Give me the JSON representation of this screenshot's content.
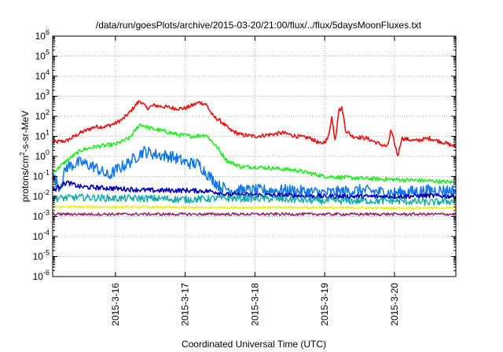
{
  "chart_data": {
    "type": "line",
    "title": "/data/run/goesPlots/archive/2015-03-20/21:00/flux/../flux/5daysMoonFluxes.txt",
    "xlabel": "Coordinated Universal Time (UTC)",
    "ylabel": {
      "base": "protons/cm",
      "sup": "2",
      "rest": "-s-sr-MeV"
    },
    "yscale": "log",
    "ylim_exp": [
      -6,
      6
    ],
    "y_tick_labels": [
      {
        "base": "10",
        "exp": "-6"
      },
      {
        "base": "10",
        "exp": "-5"
      },
      {
        "base": "10",
        "exp": "-4"
      },
      {
        "base": "10",
        "exp": "-3"
      },
      {
        "base": "10",
        "exp": "-2"
      },
      {
        "base": "10",
        "exp": "-1"
      },
      {
        "base": "10",
        "exp": "0"
      },
      {
        "base": "10",
        "exp": "1"
      },
      {
        "base": "10",
        "exp": "2"
      },
      {
        "base": "10",
        "exp": "3"
      },
      {
        "base": "10",
        "exp": "4"
      },
      {
        "base": "10",
        "exp": "5"
      },
      {
        "base": "10",
        "exp": "6"
      }
    ],
    "xlim_days": [
      15.1,
      20.88
    ],
    "x_ticks": [
      {
        "day": 16,
        "label": "2015-3-16"
      },
      {
        "day": 17,
        "label": "2015-3-17"
      },
      {
        "day": 18,
        "label": "2015-3-18"
      },
      {
        "day": 19,
        "label": "2015-3-19"
      },
      {
        "day": 20,
        "label": "2015-3-20"
      }
    ],
    "grid": true,
    "series": [
      {
        "color": "#ee1111",
        "width": 1.6,
        "x": [
          15.1,
          15.3,
          15.5,
          15.7,
          15.85,
          16.0,
          16.1,
          16.2,
          16.3,
          16.35,
          16.45,
          16.55,
          16.7,
          16.85,
          17.0,
          17.1,
          17.2,
          17.3,
          17.4,
          17.5,
          17.65,
          17.8,
          18.0,
          18.2,
          18.4,
          18.6,
          18.8,
          18.95,
          19.05,
          19.1,
          19.15,
          19.2,
          19.25,
          19.3,
          19.4,
          19.6,
          19.8,
          19.9,
          19.95,
          20.05,
          20.1,
          20.3,
          20.5,
          20.7,
          20.88
        ],
        "y": [
          5,
          6,
          15,
          30,
          30,
          45,
          70,
          150,
          400,
          600,
          250,
          350,
          300,
          250,
          250,
          350,
          500,
          400,
          100,
          60,
          20,
          12,
          10,
          12,
          15,
          10,
          8,
          4,
          8,
          100,
          6,
          200,
          250,
          20,
          10,
          8,
          4,
          3,
          20,
          1,
          8,
          6,
          8,
          5,
          3
        ],
        "noise": 0.1
      },
      {
        "color": "#22ee22",
        "width": 1.6,
        "x": [
          15.1,
          15.3,
          15.5,
          15.7,
          16.0,
          16.2,
          16.35,
          16.5,
          16.7,
          16.9,
          17.1,
          17.3,
          17.45,
          17.6,
          17.8,
          18.0,
          18.3,
          18.6,
          19.0,
          19.5,
          20.0,
          20.5,
          20.88
        ],
        "y": [
          0.15,
          0.6,
          2,
          3,
          4,
          8,
          40,
          25,
          18,
          12,
          10,
          12,
          3,
          0.6,
          0.3,
          0.3,
          0.25,
          0.2,
          0.1,
          0.08,
          0.07,
          0.06,
          0.05
        ],
        "noise": 0.1
      },
      {
        "color": "#1177ee",
        "width": 1.5,
        "x": [
          15.1,
          15.2,
          15.3,
          15.5,
          15.7,
          15.9,
          16.0,
          16.2,
          16.4,
          16.6,
          16.8,
          17.0,
          17.2,
          17.3,
          17.5,
          17.7,
          18.0,
          18.5,
          19.0,
          19.5,
          20.0,
          20.5,
          20.88
        ],
        "y": [
          0.1,
          0.03,
          0.3,
          0.5,
          0.3,
          0.1,
          0.2,
          0.5,
          1.8,
          1.2,
          1,
          0.5,
          0.4,
          0.15,
          0.03,
          0.02,
          0.02,
          0.02,
          0.015,
          0.02,
          0.015,
          0.02,
          0.02
        ],
        "noise": 0.3
      },
      {
        "color": "#0000bb",
        "width": 1.6,
        "x": [
          15.1,
          15.3,
          15.5,
          16.0,
          16.5,
          17.0,
          17.4,
          17.6,
          18.0,
          18.5,
          19.0,
          19.5,
          20.0,
          20.5,
          20.88
        ],
        "y": [
          0.02,
          0.05,
          0.03,
          0.025,
          0.02,
          0.02,
          0.018,
          0.012,
          0.012,
          0.011,
          0.01,
          0.01,
          0.01,
          0.011,
          0.01
        ],
        "noise": 0.12
      },
      {
        "color": "#11aaaa",
        "width": 1.4,
        "x": [
          15.1,
          15.5,
          16.0,
          16.5,
          17.0,
          17.5,
          18.0,
          18.5,
          19.0,
          19.5,
          20.0,
          20.5,
          20.88
        ],
        "y": [
          0.008,
          0.009,
          0.008,
          0.008,
          0.007,
          0.008,
          0.008,
          0.007,
          0.006,
          0.006,
          0.006,
          0.005,
          0.006
        ],
        "noise": 0.18
      },
      {
        "color": "#eeee00",
        "width": 1.5,
        "x": [
          15.1,
          16.0,
          17.0,
          18.0,
          19.0,
          20.0,
          20.88
        ],
        "y": [
          0.003,
          0.003,
          0.0028,
          0.0028,
          0.0028,
          0.0026,
          0.0027
        ],
        "noise": 0.05
      },
      {
        "color": "#8b2a6a",
        "width": 1.5,
        "x": [
          15.1,
          16.0,
          17.0,
          18.0,
          19.0,
          20.0,
          20.88
        ],
        "y": [
          0.0013,
          0.0013,
          0.0013,
          0.0013,
          0.0013,
          0.0013,
          0.0013
        ],
        "noise": 0.07
      }
    ]
  }
}
